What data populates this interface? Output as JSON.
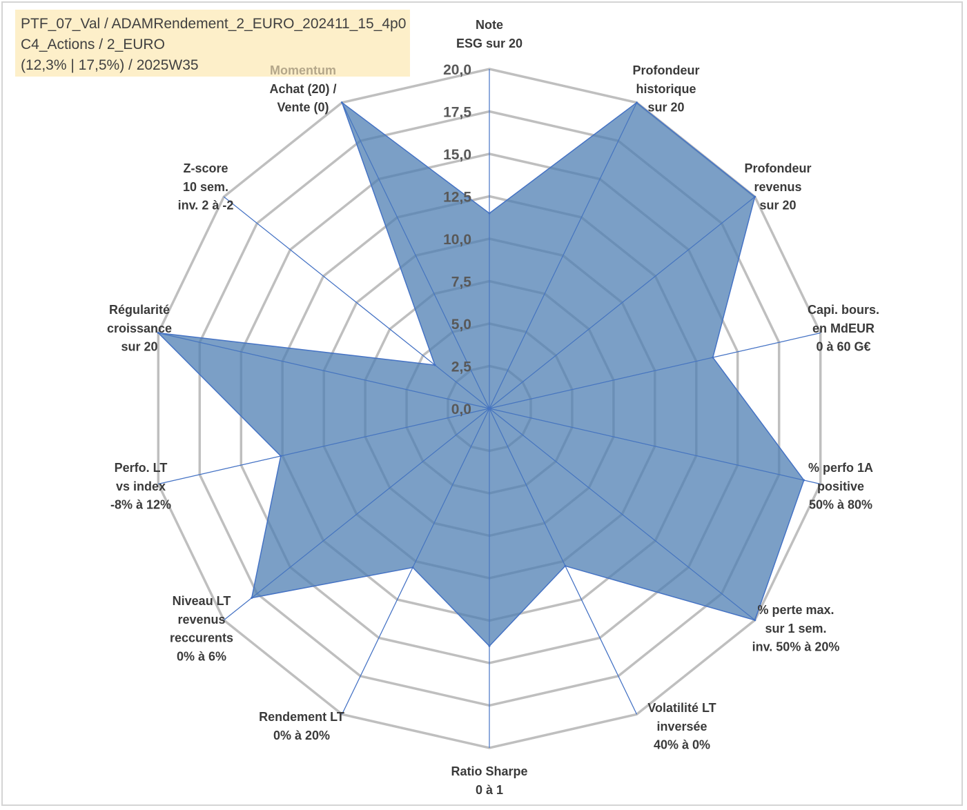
{
  "header": {
    "lines": [
      "PTF_07_Val / ADAMRendement_2_EURO_202411_15_4p0",
      "C4_Actions / 2_EURO",
      "(12,3% | 17,5%) / 2025W35"
    ]
  },
  "chart_data": {
    "type": "radar",
    "r_range": [
      0,
      20
    ],
    "ticks": [
      "0,0",
      "2,5",
      "5,0",
      "7,5",
      "10,0",
      "12,5",
      "15,0",
      "17,5",
      "20,0"
    ],
    "tick_values": [
      0,
      2.5,
      5,
      7.5,
      10,
      12.5,
      15,
      17.5,
      20
    ],
    "grid": true,
    "colors": {
      "fill": "#4f7fb3",
      "fill_opacity": 0.75,
      "line": "#4472c4",
      "grid": "#bfbfbf",
      "spoke": "#4472c4",
      "muted_label": "#b4a78a"
    },
    "axes": [
      {
        "label": [
          "Note",
          "ESG sur 20"
        ],
        "value": 11.5
      },
      {
        "label": [
          "Profondeur",
          "historique",
          "sur 20"
        ],
        "value": 20
      },
      {
        "label": [
          "Profondeur",
          "revenus",
          "sur 20"
        ],
        "value": 20
      },
      {
        "label": [
          "Capi. bours.",
          "en MdEUR",
          "0 à 60 G€"
        ],
        "value": 13.5
      },
      {
        "label": [
          "% perfo 1A",
          "positive",
          "50% à 80%"
        ],
        "value": 19
      },
      {
        "label": [
          "% perte max.",
          "sur 1 sem.",
          "inv. 50% à 20%"
        ],
        "value": 20
      },
      {
        "label": [
          "Volatilité LT",
          "inversée",
          "40% à 0%"
        ],
        "value": 10.3
      },
      {
        "label": [
          "Ratio Sharpe",
          "0 à 1"
        ],
        "value": 14
      },
      {
        "label": [
          "Rendement LT",
          "0% à 20%"
        ],
        "value": 10.4
      },
      {
        "label": [
          "Niveau LT",
          "revenus",
          "reccurents",
          "0% à 6%"
        ],
        "value": 17.9
      },
      {
        "label": [
          "Perfo. LT",
          "vs index",
          "-8% à 12%"
        ],
        "value": 12.6
      },
      {
        "label": [
          "Régularité",
          "croissance",
          "sur 20"
        ],
        "value": 20
      },
      {
        "label": [
          "Z-score",
          "10 sem.",
          "inv. 2 à -2"
        ],
        "value": 4.1
      },
      {
        "label": [
          "Momentum",
          "Achat (20) /",
          "Vente (0)"
        ],
        "value": 20,
        "muted_first_line": true
      }
    ]
  }
}
